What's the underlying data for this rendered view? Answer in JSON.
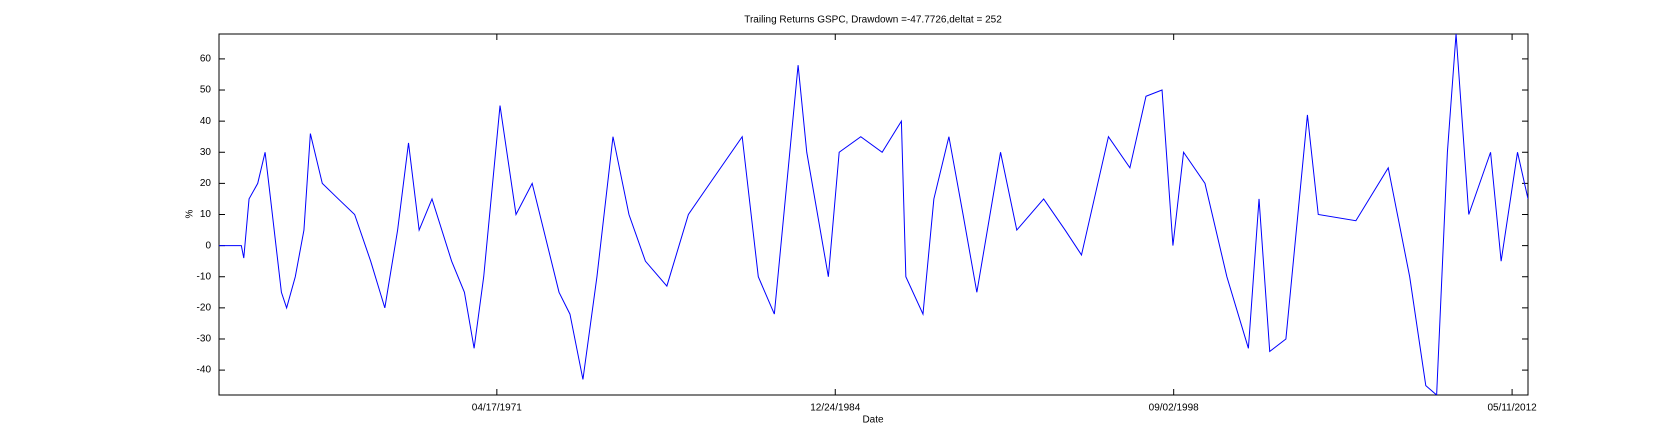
{
  "chart_data": {
    "type": "line",
    "title": "Trailing Returns GSPC, Drawdown =-47.7726,deltat = 252",
    "x_label": "Date",
    "y_label": "%",
    "x": [
      "1960-01-20",
      "1960-12-15",
      "1961-01-20",
      "1961-04-08",
      "1961-08-14",
      "1961-12-01",
      "1962-02-20",
      "1962-07-30",
      "1962-10-15",
      "1963-02-20",
      "1963-06-28",
      "1963-10-01",
      "1964-03-25",
      "1964-11-17",
      "1965-07-16",
      "1966-03-10",
      "1966-10-05",
      "1967-04-12",
      "1967-09-20",
      "1968-02-24",
      "1968-09-01",
      "1969-06-18",
      "1969-12-24",
      "1970-05-16",
      "1970-10-05",
      "1971-06-03",
      "1972-01-25",
      "1972-09-20",
      "1973-10-22",
      "1974-04-01",
      "1974-10-10",
      "1975-05-05",
      "1975-12-28",
      "1976-08-20",
      "1977-04-20",
      "1978-03-03",
      "1979-01-15",
      "1979-11-28",
      "1981-03-20",
      "1981-11-13",
      "1982-07-08",
      "1983-06-24",
      "1983-10-30",
      "1984-09-13",
      "1985-02-20",
      "1986-01-05",
      "1986-11-17",
      "1987-08-28",
      "1987-11-02",
      "1988-07-12",
      "1988-12-20",
      "1989-07-30",
      "1990-02-24",
      "1990-09-16",
      "1991-09-01",
      "1992-04-28",
      "1993-05-30",
      "1994-04-12",
      "1994-12-10",
      "1996-01-12",
      "1996-11-24",
      "1997-07-20",
      "1998-03-14",
      "1998-08-22",
      "1999-01-26",
      "1999-12-08",
      "2000-10-27",
      "2001-09-10",
      "2002-02-14",
      "2002-07-22",
      "2003-03-18",
      "2004-01-30",
      "2004-07-08",
      "2006-01-15",
      "2007-05-08",
      "2008-03-20",
      "2008-11-13",
      "2009-04-22",
      "2009-09-28",
      "2010-02-03",
      "2010-08-10",
      "2011-06-28",
      "2011-12-01",
      "2012-07-30",
      "2013-01-01"
    ],
    "series": [
      {
        "name": "GSPC",
        "color": "#0000ff",
        "values": [
          0,
          0,
          -4,
          15,
          20,
          30,
          15,
          -15,
          -20,
          -10,
          5,
          36,
          20,
          15,
          10,
          -5,
          -20,
          5,
          33,
          5,
          15,
          -5,
          -15,
          -33,
          -10,
          45,
          10,
          20,
          -15,
          -22,
          -43,
          -10,
          35,
          10,
          -5,
          -13,
          10,
          20,
          35,
          -10,
          -22,
          58,
          30,
          -10,
          30,
          35,
          30,
          40,
          -10,
          -22,
          15,
          35,
          10,
          -15,
          30,
          5,
          15,
          5,
          -3,
          35,
          25,
          48,
          50,
          0,
          30,
          20,
          -10,
          -33,
          15,
          -34,
          -30,
          42,
          10,
          8,
          25,
          -10,
          -45,
          -48,
          30,
          68,
          10,
          30,
          -5,
          30,
          15
        ]
      }
    ],
    "xlim": [
      "1960-01-20",
      "2013-01-01"
    ],
    "xticks": [
      {
        "value": "1971-04-17",
        "label": "04/17/1971"
      },
      {
        "value": "1984-12-24",
        "label": "12/24/1984"
      },
      {
        "value": "1998-09-02",
        "label": "09/02/1998"
      },
      {
        "value": "2012-05-11",
        "label": "05/11/2012"
      }
    ],
    "ylim": [
      -48,
      68
    ],
    "yticks": [
      -40,
      -30,
      -20,
      -10,
      0,
      10,
      20,
      30,
      40,
      50,
      60
    ],
    "grid": false
  }
}
